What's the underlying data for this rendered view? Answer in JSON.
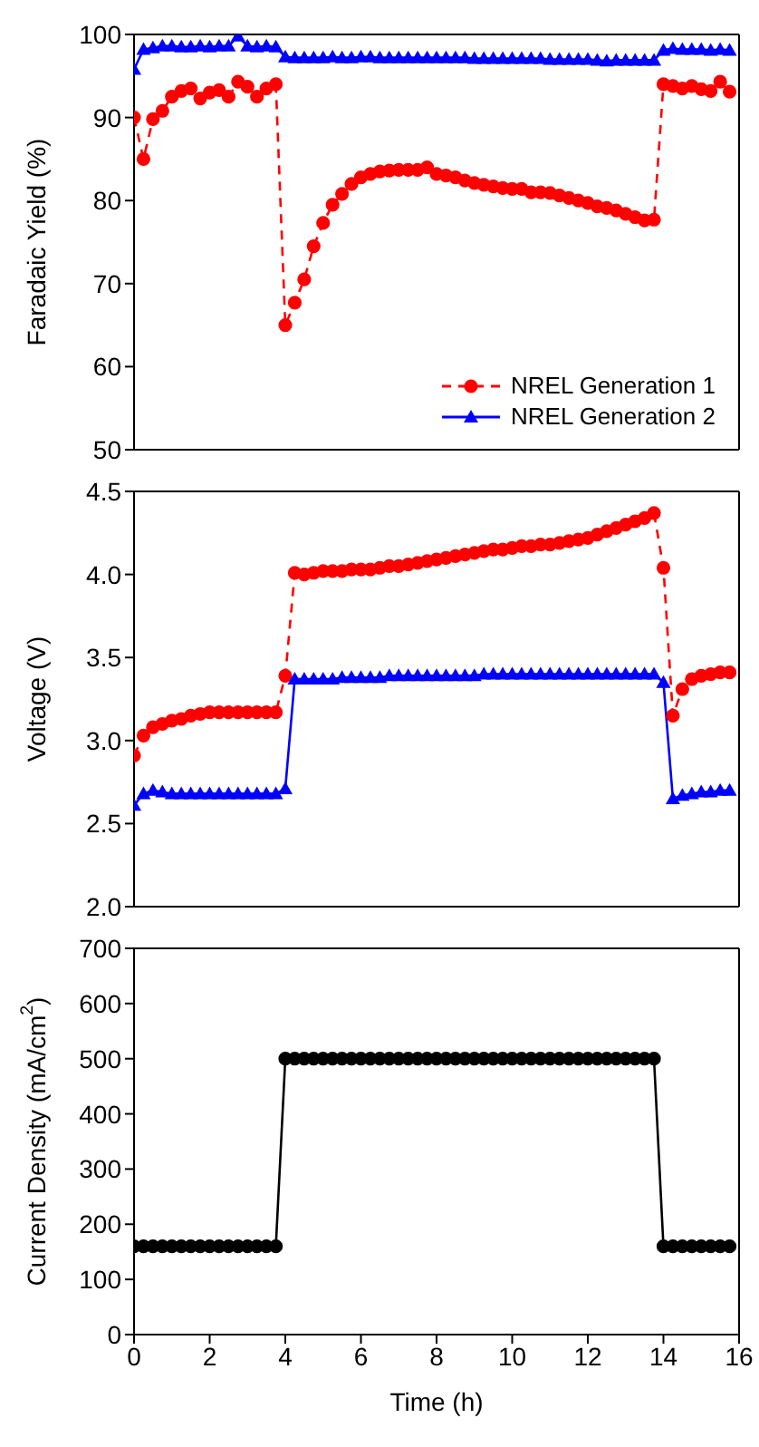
{
  "chart_data": [
    {
      "type": "line",
      "ylabel": "Faradaic Yield (%)",
      "xlim": [
        0,
        16
      ],
      "xticks": [
        0,
        2,
        4,
        6,
        8,
        10,
        12,
        14,
        16
      ],
      "ylim": [
        50,
        100
      ],
      "yticks": [
        50,
        60,
        70,
        80,
        90,
        100
      ],
      "tick_labels": "y",
      "legend": "bottom right",
      "x": [
        0,
        0.25,
        0.5,
        0.75,
        1,
        1.25,
        1.5,
        1.75,
        2,
        2.25,
        2.5,
        2.75,
        3,
        3.25,
        3.5,
        3.75,
        4,
        4.25,
        4.5,
        4.75,
        5,
        5.25,
        5.5,
        5.75,
        6,
        6.25,
        6.5,
        6.75,
        7,
        7.25,
        7.5,
        7.75,
        8,
        8.25,
        8.5,
        8.75,
        9,
        9.25,
        9.5,
        9.75,
        10,
        10.25,
        10.5,
        10.75,
        11,
        11.25,
        11.5,
        11.75,
        12,
        12.25,
        12.5,
        12.75,
        13,
        13.25,
        13.5,
        13.75,
        14,
        14.25,
        14.5,
        14.75,
        15,
        15.25,
        15.5,
        15.75
      ],
      "series": [
        {
          "name": "NREL Generation 1",
          "color": "#ff0000",
          "marker": "circle",
          "line_style": "dashed",
          "values": [
            90,
            85,
            89.8,
            90.8,
            92.5,
            93.2,
            93.5,
            92.3,
            93,
            93.3,
            92.5,
            94.3,
            93.7,
            92.5,
            93.5,
            94,
            65,
            67.7,
            70.5,
            74.5,
            77.3,
            79.5,
            80.8,
            82,
            82.8,
            83.2,
            83.5,
            83.6,
            83.7,
            83.7,
            83.7,
            84,
            83.2,
            83,
            82.8,
            82.4,
            82.1,
            81.9,
            81.7,
            81.5,
            81.4,
            81.4,
            81,
            81,
            80.9,
            80.6,
            80.3,
            80,
            79.7,
            79.3,
            79.1,
            78.8,
            78.4,
            78,
            77.6,
            77.7,
            94,
            93.8,
            93.5,
            93.8,
            93.4,
            93.2,
            94.3,
            93.1
          ]
        },
        {
          "name": "NREL Generation 2",
          "color": "#0000ff",
          "marker": "triangle",
          "line_style": "solid",
          "values": [
            95.8,
            98.2,
            98.4,
            98.6,
            98.6,
            98.5,
            98.5,
            98.6,
            98.5,
            98.6,
            98.6,
            99.8,
            98.6,
            98.5,
            98.6,
            98.5,
            97.3,
            97.2,
            97.2,
            97.2,
            97.2,
            97.3,
            97.2,
            97.2,
            97.3,
            97.3,
            97.2,
            97.2,
            97.2,
            97.2,
            97.2,
            97.2,
            97.2,
            97.2,
            97.2,
            97.2,
            97.1,
            97.1,
            97.1,
            97.1,
            97.1,
            97.1,
            97.1,
            97.1,
            97,
            97,
            97,
            97,
            97,
            96.9,
            96.8,
            96.9,
            96.9,
            96.9,
            96.9,
            96.9,
            98.1,
            98.3,
            98.2,
            98.2,
            98.2,
            98.1,
            98.2,
            98.1
          ]
        }
      ]
    },
    {
      "type": "line",
      "ylabel": "Voltage (V)",
      "xlim": [
        0,
        16
      ],
      "xticks": [
        0,
        2,
        4,
        6,
        8,
        10,
        12,
        14,
        16
      ],
      "ylim": [
        2,
        4.5
      ],
      "yticks": [
        {
          "value": 2,
          "label": "2.0"
        },
        2.5,
        {
          "value": 3,
          "label": "3.0"
        },
        3.5,
        {
          "value": 4,
          "label": "4.0"
        },
        4.5
      ],
      "tick_labels": "y",
      "x": [
        0,
        0.25,
        0.5,
        0.75,
        1,
        1.25,
        1.5,
        1.75,
        2,
        2.25,
        2.5,
        2.75,
        3,
        3.25,
        3.5,
        3.75,
        4,
        4.25,
        4.5,
        4.75,
        5,
        5.25,
        5.5,
        5.75,
        6,
        6.25,
        6.5,
        6.75,
        7,
        7.25,
        7.5,
        7.75,
        8,
        8.25,
        8.5,
        8.75,
        9,
        9.25,
        9.5,
        9.75,
        10,
        10.25,
        10.5,
        10.75,
        11,
        11.25,
        11.5,
        11.75,
        12,
        12.25,
        12.5,
        12.75,
        13,
        13.25,
        13.5,
        13.75,
        14,
        14.25,
        14.5,
        14.75,
        15,
        15.25,
        15.5,
        15.75
      ],
      "series": [
        {
          "color": "#ff0000",
          "marker": "circle",
          "line_style": "dashed",
          "values": [
            2.91,
            3.03,
            3.08,
            3.1,
            3.12,
            3.13,
            3.15,
            3.16,
            3.17,
            3.17,
            3.17,
            3.17,
            3.17,
            3.17,
            3.17,
            3.17,
            3.39,
            4.01,
            4,
            4.01,
            4.02,
            4.02,
            4.02,
            4.03,
            4.03,
            4.03,
            4.04,
            4.05,
            4.05,
            4.06,
            4.07,
            4.08,
            4.09,
            4.1,
            4.11,
            4.12,
            4.13,
            4.14,
            4.15,
            4.15,
            4.16,
            4.17,
            4.17,
            4.18,
            4.18,
            4.19,
            4.2,
            4.21,
            4.22,
            4.24,
            4.26,
            4.28,
            4.3,
            4.32,
            4.34,
            4.37,
            4.04,
            3.15,
            3.31,
            3.37,
            3.39,
            3.4,
            3.41,
            3.41
          ]
        },
        {
          "color": "#0000ff",
          "marker": "triangle",
          "line_style": "solid",
          "values": [
            2.61,
            2.68,
            2.7,
            2.69,
            2.68,
            2.68,
            2.68,
            2.68,
            2.68,
            2.68,
            2.68,
            2.68,
            2.68,
            2.68,
            2.68,
            2.68,
            2.71,
            3.37,
            3.37,
            3.37,
            3.37,
            3.37,
            3.38,
            3.38,
            3.38,
            3.38,
            3.38,
            3.39,
            3.39,
            3.39,
            3.39,
            3.39,
            3.39,
            3.39,
            3.39,
            3.39,
            3.39,
            3.4,
            3.4,
            3.4,
            3.4,
            3.4,
            3.4,
            3.4,
            3.4,
            3.4,
            3.4,
            3.4,
            3.4,
            3.4,
            3.4,
            3.4,
            3.4,
            3.4,
            3.4,
            3.4,
            3.35,
            2.65,
            2.67,
            2.68,
            2.69,
            2.69,
            2.7,
            2.7
          ]
        }
      ]
    },
    {
      "type": "line",
      "xlabel": "Time (h)",
      "ylabel": "Current Density (mA/cm$^{2}$)",
      "xlim": [
        0,
        16
      ],
      "xticks": [
        0,
        2,
        4,
        6,
        8,
        10,
        12,
        14,
        16
      ],
      "ylim": [
        0,
        700
      ],
      "yticks": [
        0,
        100,
        200,
        300,
        400,
        500,
        600,
        700
      ],
      "x": [
        0,
        0.25,
        0.5,
        0.75,
        1,
        1.25,
        1.5,
        1.75,
        2,
        2.25,
        2.5,
        2.75,
        3,
        3.25,
        3.5,
        3.75,
        4,
        4.25,
        4.5,
        4.75,
        5,
        5.25,
        5.5,
        5.75,
        6,
        6.25,
        6.5,
        6.75,
        7,
        7.25,
        7.5,
        7.75,
        8,
        8.25,
        8.5,
        8.75,
        9,
        9.25,
        9.5,
        9.75,
        10,
        10.25,
        10.5,
        10.75,
        11,
        11.25,
        11.5,
        11.75,
        12,
        12.25,
        12.5,
        12.75,
        13,
        13.25,
        13.5,
        13.75,
        14,
        14.25,
        14.5,
        14.75,
        15,
        15.25,
        15.5,
        15.75
      ],
      "series": [
        {
          "color": "#000000",
          "marker": "circle",
          "line_style": "solid",
          "values": [
            160,
            160,
            160,
            160,
            160,
            160,
            160,
            160,
            160,
            160,
            160,
            160,
            160,
            160,
            160,
            160,
            500,
            500,
            500,
            500,
            500,
            500,
            500,
            500,
            500,
            500,
            500,
            500,
            500,
            500,
            500,
            500,
            500,
            500,
            500,
            500,
            500,
            500,
            500,
            500,
            500,
            500,
            500,
            500,
            500,
            500,
            500,
            500,
            500,
            500,
            500,
            500,
            500,
            500,
            500,
            500,
            160,
            160,
            160,
            160,
            160,
            160,
            160,
            160
          ]
        }
      ]
    }
  ]
}
